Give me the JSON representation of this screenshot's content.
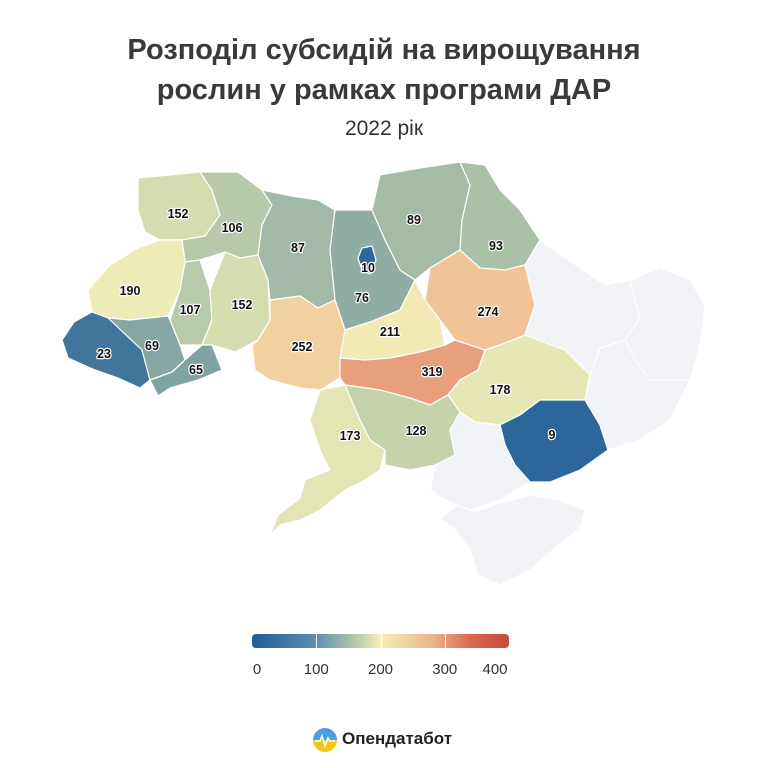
{
  "title_lines": [
    "Розподіл субсидій на вирощування",
    "рослин у рамках програми ДАР"
  ],
  "subtitle": "2022 рік",
  "chart_data": {
    "type": "choropleth",
    "title": "Розподіл субсидій на вирощування рослин у рамках програми ДАР",
    "subtitle": "2022 рік",
    "color_scale": {
      "min": 0,
      "max": 400,
      "ticks": [
        0,
        100,
        200,
        300,
        400
      ],
      "colors": [
        "#1f5c99",
        "#b4c7a8",
        "#f4f0b8",
        "#eeb58a",
        "#c8473c"
      ]
    },
    "no_data_color": "#f2f3f7",
    "regions": [
      {
        "id": "volyn",
        "value": 152
      },
      {
        "id": "rivne",
        "value": 106
      },
      {
        "id": "lviv",
        "value": 190
      },
      {
        "id": "ternopil",
        "value": 107
      },
      {
        "id": "khmelnytskyi",
        "value": 152
      },
      {
        "id": "zakarpattia",
        "value": 23
      },
      {
        "id": "ivano-frankivsk",
        "value": 69
      },
      {
        "id": "chernivtsi",
        "value": 65
      },
      {
        "id": "zhytomyr",
        "value": 87
      },
      {
        "id": "kyiv-city",
        "value": 10
      },
      {
        "id": "kyiv-oblast",
        "value": 76
      },
      {
        "id": "chernihiv",
        "value": 89
      },
      {
        "id": "sumy",
        "value": 93
      },
      {
        "id": "poltava",
        "value": 274
      },
      {
        "id": "cherkasy",
        "value": 211
      },
      {
        "id": "vinnytsia",
        "value": 252
      },
      {
        "id": "kirovohrad",
        "value": 319
      },
      {
        "id": "dnipropetrovsk",
        "value": 178
      },
      {
        "id": "zaporizhzhia",
        "value": 9
      },
      {
        "id": "odesa",
        "value": 173
      },
      {
        "id": "mykolaiv",
        "value": 128
      },
      {
        "id": "kharkiv",
        "value": null
      },
      {
        "id": "luhansk",
        "value": null
      },
      {
        "id": "donetsk",
        "value": null
      },
      {
        "id": "kherson",
        "value": null
      },
      {
        "id": "crimea",
        "value": null
      }
    ]
  },
  "legend": {
    "ticks": [
      "0",
      "100",
      "200",
      "300",
      "400"
    ]
  },
  "logo": {
    "text": "Опендатабот"
  }
}
